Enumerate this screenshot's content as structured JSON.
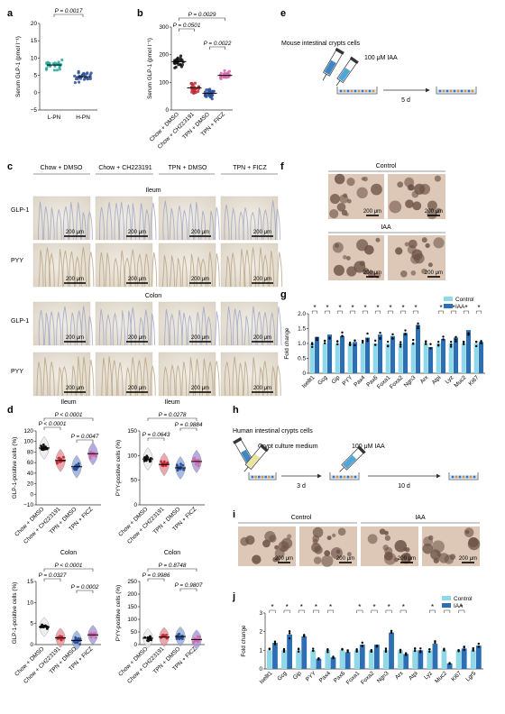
{
  "panels": {
    "a": "a",
    "b": "b",
    "c": "c",
    "d": "d",
    "e": "e",
    "f": "f",
    "g": "g",
    "h": "h",
    "i": "i",
    "j": "j"
  },
  "colors": {
    "teal": "#2aa79b",
    "red": "#c22b34",
    "blue": "#2b4f9a",
    "pink": "#d46aa8",
    "violet": "#9f8ed6",
    "lightblue": "#8fd8e8",
    "darkblue": "#2d6fb2",
    "black": "#111111"
  },
  "chart_data": [
    {
      "id": "a",
      "type": "scatter",
      "ylabel": "Serum GLP-1 (pmol l⁻¹)",
      "ylim": [
        -5,
        20
      ],
      "yticks": [
        "20",
        "15",
        "10",
        "5",
        "0",
        "−5"
      ],
      "categories": [
        "L-PN",
        "H-PN"
      ],
      "means": [
        8,
        4.6
      ],
      "annotations": [
        {
          "text": "P = 0.0017",
          "between": [
            0,
            1
          ]
        }
      ]
    },
    {
      "id": "b",
      "type": "scatter",
      "ylabel": "Serum GLP-1 (pmol l⁻¹)",
      "ylim": [
        0,
        300
      ],
      "yticks": [
        "300",
        "200",
        "100",
        "0"
      ],
      "categories": [
        "Chow + DMSO",
        "Chow + CH223191",
        "TPN + DMSO",
        "TPN + FICZ"
      ],
      "means": [
        175,
        80,
        60,
        125
      ],
      "annotations": [
        {
          "text": "P = 0.0029",
          "between": [
            0,
            3
          ]
        },
        {
          "text": "P = 0.0501",
          "between": [
            0,
            1
          ]
        },
        {
          "text": "P = 0.0022",
          "between": [
            2,
            3
          ]
        }
      ]
    },
    {
      "id": "d1",
      "type": "violin",
      "title": "Ileum",
      "ylabel": "GLP-1-positive cells (%)",
      "ylim": [
        -10,
        120
      ],
      "yticks": [
        "120",
        "100",
        "80",
        "60",
        "40",
        "20",
        "0",
        "−10"
      ],
      "categories": [
        "Chow + DMSO",
        "Chow + CH223191",
        "TPN + DMSO",
        "TPN + FICZ"
      ],
      "means": [
        90,
        68,
        57,
        80
      ],
      "annotations": [
        {
          "text": "P < 0.0001",
          "between": [
            0,
            3
          ]
        },
        {
          "text": "P < 0.0001",
          "between": [
            0,
            1
          ]
        },
        {
          "text": "P = 0.0047",
          "between": [
            2,
            3
          ]
        }
      ]
    },
    {
      "id": "d2",
      "type": "violin",
      "title": "Ileum",
      "ylabel": "PYY-positive cells (%)",
      "ylim": [
        0,
        150
      ],
      "yticks": [
        "150",
        "100",
        "50",
        "0"
      ],
      "categories": [
        "Chow + DMSO",
        "Chow + CH223191",
        "TPN + DMSO",
        "TPN + FICZ"
      ],
      "means": [
        93,
        82,
        75,
        88
      ],
      "annotations": [
        {
          "text": "P = 0.0278",
          "between": [
            0,
            3
          ]
        },
        {
          "text": "P = 0.9884",
          "between": [
            2,
            3
          ]
        },
        {
          "text": "P = 0.0643",
          "between": [
            0,
            1
          ]
        }
      ]
    },
    {
      "id": "d3",
      "type": "violin",
      "title": "Colon",
      "ylabel": "GLP-1-positive cells (%)",
      "ylim": [
        0,
        15
      ],
      "yticks": [
        "15",
        "10",
        "5",
        "0"
      ],
      "categories": [
        "Chow + DMSO",
        "Chow + CH223191",
        "TPN + DMSO",
        "TPN + FICZ"
      ],
      "means": [
        4.2,
        1.6,
        1.0,
        2.3
      ],
      "annotations": [
        {
          "text": "P < 0.0001",
          "between": [
            0,
            3
          ]
        },
        {
          "text": "P = 0.0327",
          "between": [
            0,
            1
          ]
        },
        {
          "text": "P = 0.0002",
          "between": [
            2,
            3
          ]
        }
      ]
    },
    {
      "id": "d4",
      "type": "violin",
      "title": "Colon",
      "ylabel": "PYY-positive cells (%)",
      "ylim": [
        0,
        250
      ],
      "yticks": [
        "250",
        "200",
        "150",
        "100",
        "50",
        "0"
      ],
      "categories": [
        "Chow + DMSO",
        "Chow + CH223191",
        "TPN + DMSO",
        "TPN + FICZ"
      ],
      "means": [
        25,
        30,
        32,
        20
      ],
      "annotations": [
        {
          "text": "P = 0.8748",
          "between": [
            0,
            3
          ]
        },
        {
          "text": "P = 0.9986",
          "between": [
            0,
            1
          ]
        },
        {
          "text": "P = 0.9807",
          "between": [
            2,
            3
          ]
        }
      ]
    },
    {
      "id": "g",
      "type": "bar",
      "ylabel": "Fold change",
      "ylim": [
        0,
        2.0
      ],
      "yticks": [
        "2.0",
        "1.5",
        "1.0",
        "0.5",
        "0"
      ],
      "categories": [
        "Isellt1",
        "Gcg",
        "Gip",
        "PYY",
        "Pax4",
        "Pax6",
        "Foxa1",
        "Foxa2",
        "Ngn3",
        "Arx",
        "Atpi",
        "Lyz",
        "Muc2",
        "Ki67"
      ],
      "series": [
        {
          "name": "Control",
          "values": [
            1,
            1,
            1,
            1,
            1,
            1,
            1,
            1,
            1,
            1,
            1,
            1,
            1,
            1
          ]
        },
        {
          "name": "IAA",
          "values": [
            1.22,
            1.3,
            1.25,
            1.05,
            1.2,
            1.3,
            1.25,
            1.35,
            1.62,
            0.88,
            1.15,
            1.2,
            1.45,
            1.05
          ]
        }
      ],
      "stars": [
        "*",
        "*",
        "*",
        "*",
        "*",
        "*",
        "*",
        "*",
        "*",
        "",
        "*",
        "*",
        "*",
        "*"
      ]
    },
    {
      "id": "j",
      "type": "bar",
      "ylabel": "Fold change",
      "ylim": [
        0,
        3
      ],
      "yticks": [
        "3",
        "2",
        "1",
        "0"
      ],
      "categories": [
        "Isellt1",
        "Gcg",
        "Gip",
        "PYY",
        "Pax4",
        "Pax6",
        "Foxa1",
        "Foxa2",
        "Ngn3",
        "Arx",
        "Atpi",
        "Lyz",
        "Muc2",
        "Ki67",
        "Lgr5"
      ],
      "series": [
        {
          "name": "Control",
          "values": [
            1,
            1,
            1,
            1,
            1,
            1,
            1,
            1,
            1,
            1,
            1,
            1,
            1,
            1,
            1
          ]
        },
        {
          "name": "IAA",
          "values": [
            1.4,
            1.85,
            1.75,
            0.55,
            0.62,
            0.9,
            1.3,
            1.3,
            1.95,
            0.8,
            1.0,
            1.35,
            0.3,
            1.1,
            1.25
          ]
        }
      ],
      "stars": [
        "*",
        "*",
        "*",
        "*",
        "*",
        "",
        "*",
        "*",
        "*",
        "*",
        "",
        "*",
        "*",
        "*",
        ""
      ]
    }
  ],
  "c": {
    "columns": [
      "Chow + DMSO",
      "Chow + CH223191",
      "TPN + DMSO",
      "TPN + FICZ"
    ],
    "ileum": "Ileum",
    "colon": "Colon",
    "rows": [
      "GLP-1",
      "PYY",
      "GLP-1",
      "PYY"
    ],
    "scale": "200 μm"
  },
  "e": {
    "cells": "Mouse intestinal crypts cells",
    "iaa": "100 μM IAA",
    "days": "5 d"
  },
  "f": {
    "control": "Control",
    "iaa": "IAA",
    "scale": "200 μm"
  },
  "h": {
    "cells": "Human intestinal crypts cells",
    "medium": "Crypt culture medium",
    "iaa": "100 μM IAA",
    "d1": "3 d",
    "d2": "10 d"
  },
  "i": {
    "control": "Control",
    "iaa": "IAA",
    "scale": "200 μm"
  },
  "legend": {
    "control": "Control",
    "iaa": "IAA"
  }
}
